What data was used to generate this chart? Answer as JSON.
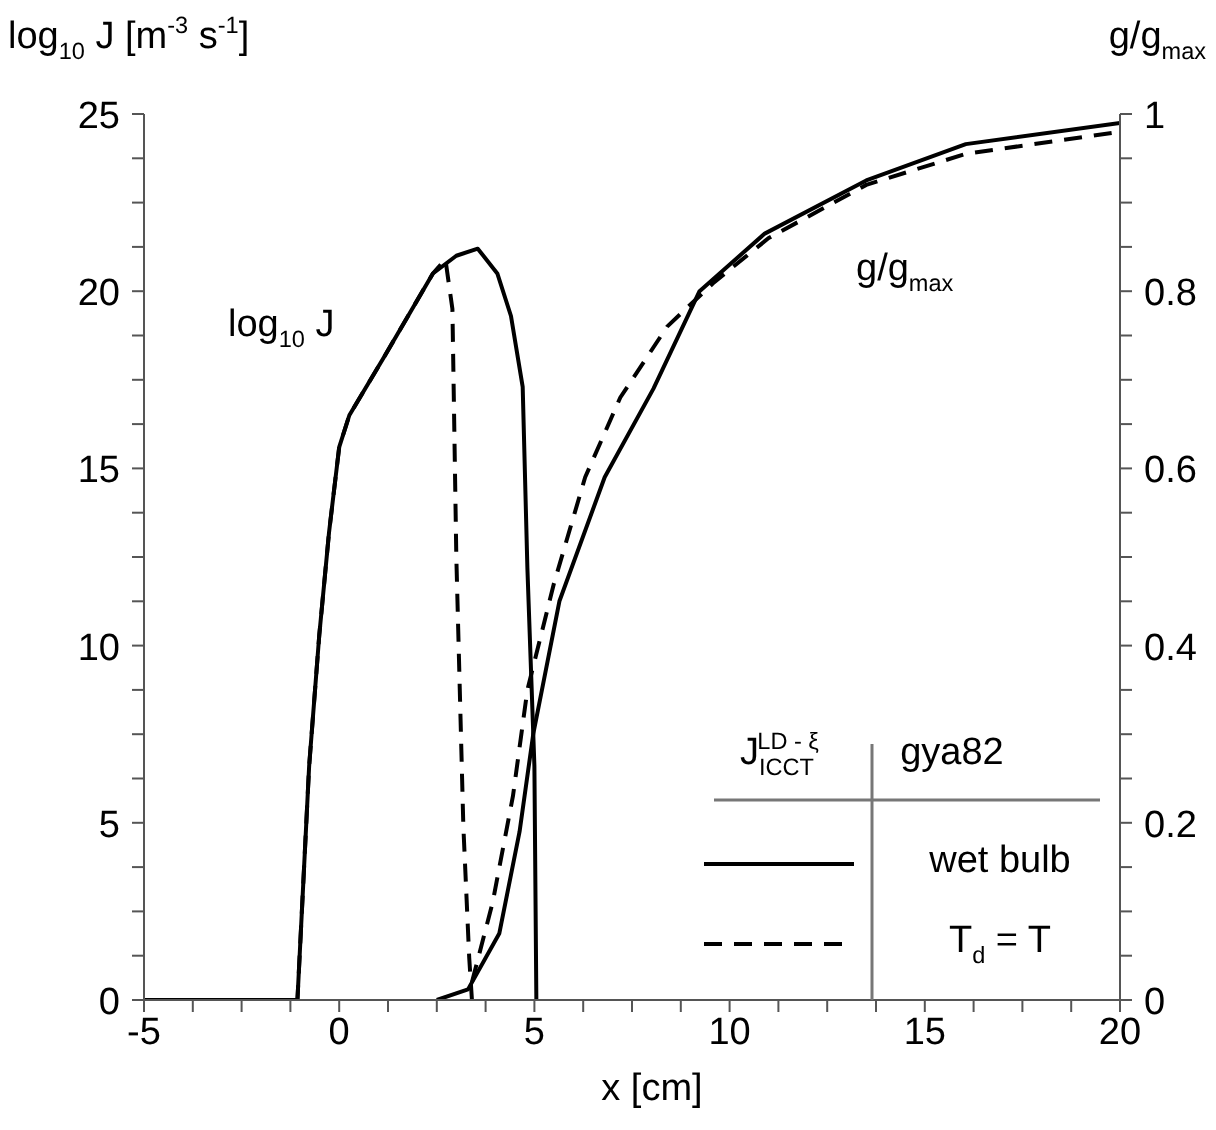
{
  "chart_data": {
    "type": "line",
    "xlabel": "x  [cm]",
    "ylabel": "log$_{10}$ J [m$^{-3}$ s$^{-1}$]",
    "y2label": "g/g$_{max}$",
    "legend_title": "J$_{ICCT}$$^{LD - ξ}$",
    "legend": "bottom right",
    "marker": "none",
    "annotations": [
      "log$_{10}$ J",
      "g/g$_{max}$",
      "gya82"
    ],
    "xlim": [
      -5,
      20
    ],
    "ylim": [
      0,
      25
    ],
    "y2lim": [
      0,
      1
    ],
    "xticks": [
      -5,
      {
        "value": -3.75,
        "label": null
      },
      {
        "value": -2.5,
        "label": null
      },
      {
        "value": -1.25,
        "label": null
      },
      0,
      {
        "value": 1.25,
        "label": null
      },
      {
        "value": 2.5,
        "label": null
      },
      {
        "value": 3.75,
        "label": null
      },
      5,
      {
        "value": 6.25,
        "label": null
      },
      {
        "value": 7.5,
        "label": null
      },
      {
        "value": 8.75,
        "label": null
      },
      10,
      {
        "value": 11.25,
        "label": null
      },
      {
        "value": 12.5,
        "label": null
      },
      {
        "value": 13.75,
        "label": null
      },
      15,
      {
        "value": 16.25,
        "label": null
      },
      {
        "value": 17.5,
        "label": null
      },
      {
        "value": 18.75,
        "label": null
      },
      20
    ],
    "yticks": [
      0,
      {
        "value": 1.25,
        "label": null
      },
      {
        "value": 2.5,
        "label": null
      },
      {
        "value": 3.75,
        "label": null
      },
      5,
      {
        "value": 6.25,
        "label": null
      },
      {
        "value": 7.5,
        "label": null
      },
      {
        "value": 8.75,
        "label": null
      },
      10,
      {
        "value": 11.25,
        "label": null
      },
      {
        "value": 12.5,
        "label": null
      },
      {
        "value": 13.75,
        "label": null
      },
      15,
      {
        "value": 16.25,
        "label": null
      },
      {
        "value": 17.5,
        "label": null
      },
      {
        "value": 18.75,
        "label": null
      },
      20,
      {
        "value": 21.25,
        "label": null
      },
      {
        "value": 22.5,
        "label": null
      },
      {
        "value": 23.75,
        "label": null
      },
      25
    ],
    "y2ticks": [
      0,
      {
        "value": 0.05,
        "label": null
      },
      {
        "value": 0.1,
        "label": null
      },
      {
        "value": 0.15,
        "label": null
      },
      0.2,
      {
        "value": 0.25,
        "label": null
      },
      {
        "value": 0.3,
        "label": null
      },
      {
        "value": 0.35,
        "label": null
      },
      0.4,
      {
        "value": 0.45,
        "label": null
      },
      {
        "value": 0.5,
        "label": null
      },
      {
        "value": 0.55,
        "label": null
      },
      0.6,
      {
        "value": 0.65,
        "label": null
      },
      {
        "value": 0.7,
        "label": null
      },
      {
        "value": 0.75,
        "label": null
      },
      0.8,
      {
        "value": 0.85,
        "label": null
      },
      {
        "value": 0.9,
        "label": null
      },
      {
        "value": 0.95,
        "label": null
      },
      1
    ],
    "series": [
      {
        "name": "wet bulb",
        "color": "#000000",
        "line_style": "solid",
        "x": [
          -5,
          -1.07,
          -0.77,
          -0.51,
          -0.26,
          0,
          0.26,
          1.18,
          2.4,
          3.0,
          3.55,
          4.05,
          4.4,
          4.7,
          4.82,
          5.0,
          5.05
        ],
        "values": [
          0,
          0,
          6.6,
          10.3,
          13.2,
          15.6,
          16.5,
          18.2,
          20.5,
          21.0,
          21.2,
          20.5,
          19.3,
          17.3,
          12.2,
          6.6,
          0
        ]
      },
      {
        "name": "T$_{d}$ = T",
        "color": "#000000",
        "line_style": "dashed",
        "x": [
          -5,
          -1.07,
          -0.77,
          -0.51,
          -0.26,
          0,
          0.26,
          1.18,
          2.4,
          2.72,
          2.9,
          3.0,
          3.18,
          3.33,
          3.4
        ],
        "values": [
          0,
          0,
          6.6,
          10.3,
          13.2,
          15.6,
          16.5,
          18.2,
          20.5,
          20.9,
          19.5,
          12.5,
          4.9,
          1.2,
          0
        ]
      },
      {
        "color": "#000000",
        "line_style": "solid",
        "axis": "y2",
        "x": [
          2.5,
          3.3,
          4.1,
          4.62,
          4.97,
          5.64,
          6.8,
          8.05,
          9.23,
          10.9,
          13.5,
          16.05,
          20
        ],
        "values": [
          0,
          0.012,
          0.075,
          0.19,
          0.3,
          0.45,
          0.59,
          0.69,
          0.8,
          0.865,
          0.925,
          0.966,
          0.99
        ]
      },
      {
        "color": "#000000",
        "line_style": "dashed",
        "axis": "y2",
        "x": [
          3.4,
          3.93,
          4.45,
          4.82,
          5.5,
          6.3,
          7.2,
          8.4,
          9.6,
          11,
          13.5,
          16.05,
          20
        ],
        "values": [
          0.02,
          0.11,
          0.23,
          0.35,
          0.47,
          0.59,
          0.68,
          0.76,
          0.81,
          0.86,
          0.92,
          0.955,
          0.98
        ]
      }
    ]
  }
}
